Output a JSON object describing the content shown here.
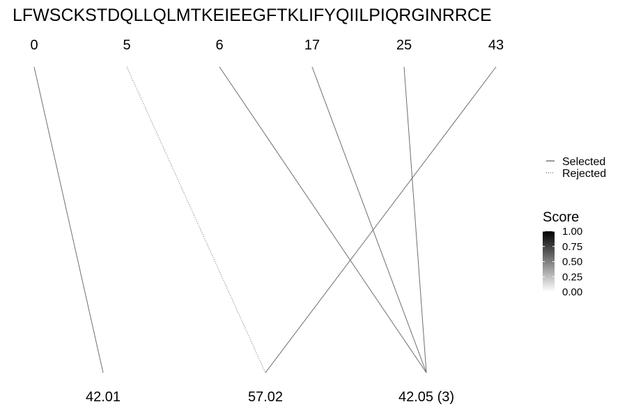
{
  "chart_data": {
    "type": "line",
    "sequence": "LFWSCKSTDQLLQLMTKEIEEGFTKLIFYQIILPIQRGINRRCE",
    "top_labels": [
      "0",
      "5",
      "6",
      "17",
      "25",
      "43"
    ],
    "bottom_labels": [
      "42.01",
      "57.02",
      "42.05 (3)"
    ],
    "links": [
      {
        "from": 0,
        "to": 0,
        "status": "Selected",
        "score": 0.5
      },
      {
        "from": 1,
        "to": 1,
        "status": "Rejected",
        "score": 0.5
      },
      {
        "from": 2,
        "to": 2,
        "status": "Selected",
        "score": 0.5
      },
      {
        "from": 3,
        "to": 2,
        "status": "Selected",
        "score": 0.5
      },
      {
        "from": 4,
        "to": 2,
        "status": "Selected",
        "score": 0.5
      },
      {
        "from": 5,
        "to": 1,
        "status": "Selected",
        "score": 0.5
      }
    ],
    "legend_linetype": {
      "entries": [
        {
          "label": "Selected",
          "style": "solid"
        },
        {
          "label": "Rejected",
          "style": "dotted"
        }
      ],
      "position": "right"
    },
    "legend_colorbar": {
      "title": "Score",
      "ticks": [
        "1.00",
        "0.75",
        "0.50",
        "0.25",
        "0.00"
      ],
      "range": [
        0,
        1
      ],
      "colors": {
        "low": "#ffffff",
        "high": "#000000"
      }
    },
    "line_color": "#6e6e6e"
  }
}
